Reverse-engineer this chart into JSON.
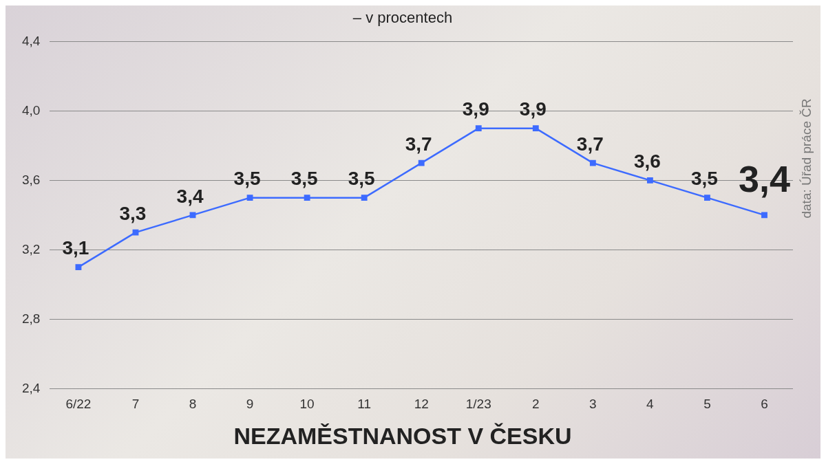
{
  "chart_data": {
    "type": "line",
    "title": "NEZAMĚSTNANOST V ČESKU",
    "subtitle": "– v procentech",
    "annotations": [
      "data: Úřad práce ČR"
    ],
    "categories": [
      "6/22",
      "7",
      "8",
      "9",
      "10",
      "11",
      "12",
      "1/23",
      "2",
      "3",
      "4",
      "5",
      "6"
    ],
    "series": [
      {
        "color": "#3d6bff",
        "values": [
          3.1,
          3.3,
          3.4,
          3.5,
          3.5,
          3.5,
          3.7,
          3.9,
          3.9,
          3.7,
          3.6,
          3.5,
          3.4
        ],
        "value_labels": [
          "3,1",
          "3,3",
          "3,4",
          "3,5",
          "3,5",
          "3,5",
          "3,7",
          "3,9",
          "3,9",
          "3,7",
          "3,6",
          "3,5",
          "3,4"
        ]
      }
    ],
    "ylim": [
      2.4,
      4.4
    ],
    "yticks": [
      {
        "value": 2.4,
        "label": "2,4"
      },
      {
        "value": 2.8,
        "label": "2,8"
      },
      {
        "value": 3.2,
        "label": "3,2"
      },
      {
        "value": 3.6,
        "label": "3,6"
      },
      {
        "value": 4.0,
        "label": "4,0"
      },
      {
        "value": 4.4,
        "label": "4,4"
      }
    ],
    "grid": "y",
    "legend": false,
    "marker": "square",
    "line_style": "solid"
  }
}
